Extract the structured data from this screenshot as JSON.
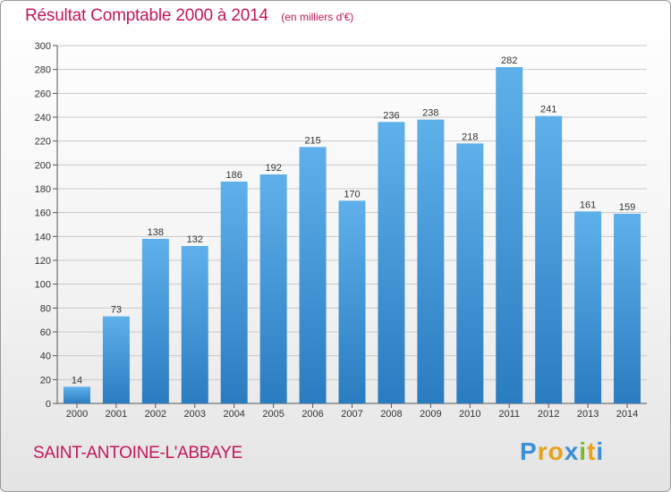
{
  "title": "Résultat Comptable 2000 à 2014",
  "subtitle": "(en milliers d'€)",
  "place": "SAINT-ANTOINE-L'ABBAYE",
  "logo": {
    "text": "Proxiti",
    "letters": [
      "P",
      "r",
      "o",
      "x",
      "i",
      "t",
      "i"
    ],
    "colors": [
      "#3a8fd6",
      "#e8a21a",
      "#e8a21a",
      "#3a8fd6",
      "#7cb82f",
      "#e8a21a",
      "#3a8fd6"
    ]
  },
  "colors": {
    "bar_light": "#5fb0ea",
    "bar_dark": "#2a7cc0",
    "title": "#c2185b"
  },
  "chart_data": {
    "type": "bar",
    "title": "Résultat Comptable 2000 à 2014",
    "ylabel": "en milliers d'€",
    "xlabel": "",
    "categories": [
      "2000",
      "2001",
      "2002",
      "2003",
      "2004",
      "2005",
      "2006",
      "2007",
      "2008",
      "2009",
      "2010",
      "2011",
      "2012",
      "2013",
      "2014"
    ],
    "values": [
      14,
      73,
      138,
      132,
      186,
      192,
      215,
      170,
      236,
      238,
      218,
      282,
      241,
      161,
      159
    ],
    "ylim": [
      0,
      300
    ],
    "yticks": [
      0,
      20,
      40,
      60,
      80,
      100,
      120,
      140,
      160,
      180,
      200,
      220,
      240,
      260,
      280,
      300
    ],
    "grid": true,
    "legend": "none"
  }
}
